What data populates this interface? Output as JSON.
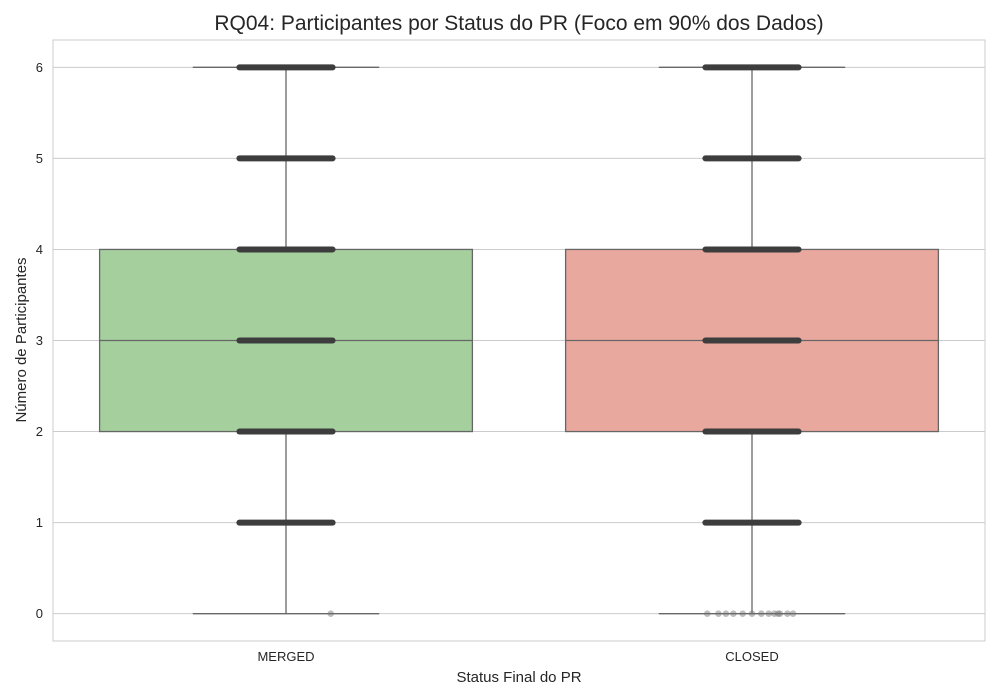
{
  "chart_data": {
    "type": "box",
    "title": "RQ04: Participantes por Status do PR (Foco em 90% dos Dados)",
    "xlabel": "Status Final do PR",
    "ylabel": "Número de Participantes",
    "categories": [
      "MERGED",
      "CLOSED"
    ],
    "y_ticks": [
      "0",
      "1",
      "2",
      "3",
      "4",
      "5",
      "6"
    ],
    "ylim": [
      -0.3,
      6.3
    ],
    "grid": true,
    "boxes": [
      {
        "category": "MERGED",
        "whisker_low": 0,
        "q1": 2,
        "median": 3,
        "q3": 4,
        "whisker_high": 6,
        "color": "#a5d09e"
      },
      {
        "category": "CLOSED",
        "whisker_low": 0,
        "q1": 2,
        "median": 3,
        "q3": 4,
        "whisker_high": 6,
        "color": "#e9a89e"
      }
    ],
    "strip_levels": [
      {
        "category": "MERGED",
        "value": 6
      },
      {
        "category": "MERGED",
        "value": 5
      },
      {
        "category": "MERGED",
        "value": 4
      },
      {
        "category": "MERGED",
        "value": 3
      },
      {
        "category": "MERGED",
        "value": 2
      },
      {
        "category": "MERGED",
        "value": 1
      },
      {
        "category": "CLOSED",
        "value": 6
      },
      {
        "category": "CLOSED",
        "value": 5
      },
      {
        "category": "CLOSED",
        "value": 4
      },
      {
        "category": "CLOSED",
        "value": 3
      },
      {
        "category": "CLOSED",
        "value": 2
      },
      {
        "category": "CLOSED",
        "value": 1
      }
    ],
    "sparse_points": [
      {
        "category": "MERGED",
        "value": 0,
        "offset": 0.24
      },
      {
        "category": "CLOSED",
        "value": 0,
        "offset": -0.24
      },
      {
        "category": "CLOSED",
        "value": 0,
        "offset": -0.18
      },
      {
        "category": "CLOSED",
        "value": 0,
        "offset": -0.14
      },
      {
        "category": "CLOSED",
        "value": 0,
        "offset": -0.1
      },
      {
        "category": "CLOSED",
        "value": 0,
        "offset": -0.05
      },
      {
        "category": "CLOSED",
        "value": 0,
        "offset": 0.0
      },
      {
        "category": "CLOSED",
        "value": 0,
        "offset": 0.05
      },
      {
        "category": "CLOSED",
        "value": 0,
        "offset": 0.09
      },
      {
        "category": "CLOSED",
        "value": 0,
        "offset": 0.12
      },
      {
        "category": "CLOSED",
        "value": 0,
        "offset": 0.14
      },
      {
        "category": "CLOSED",
        "value": 0,
        "offset": 0.15
      },
      {
        "category": "CLOSED",
        "value": 0,
        "offset": 0.19
      },
      {
        "category": "CLOSED",
        "value": 0,
        "offset": 0.22
      }
    ],
    "colors": {
      "strip": "#3d3d3d",
      "line": "#666666",
      "sparse": "#6e6e6e"
    }
  }
}
